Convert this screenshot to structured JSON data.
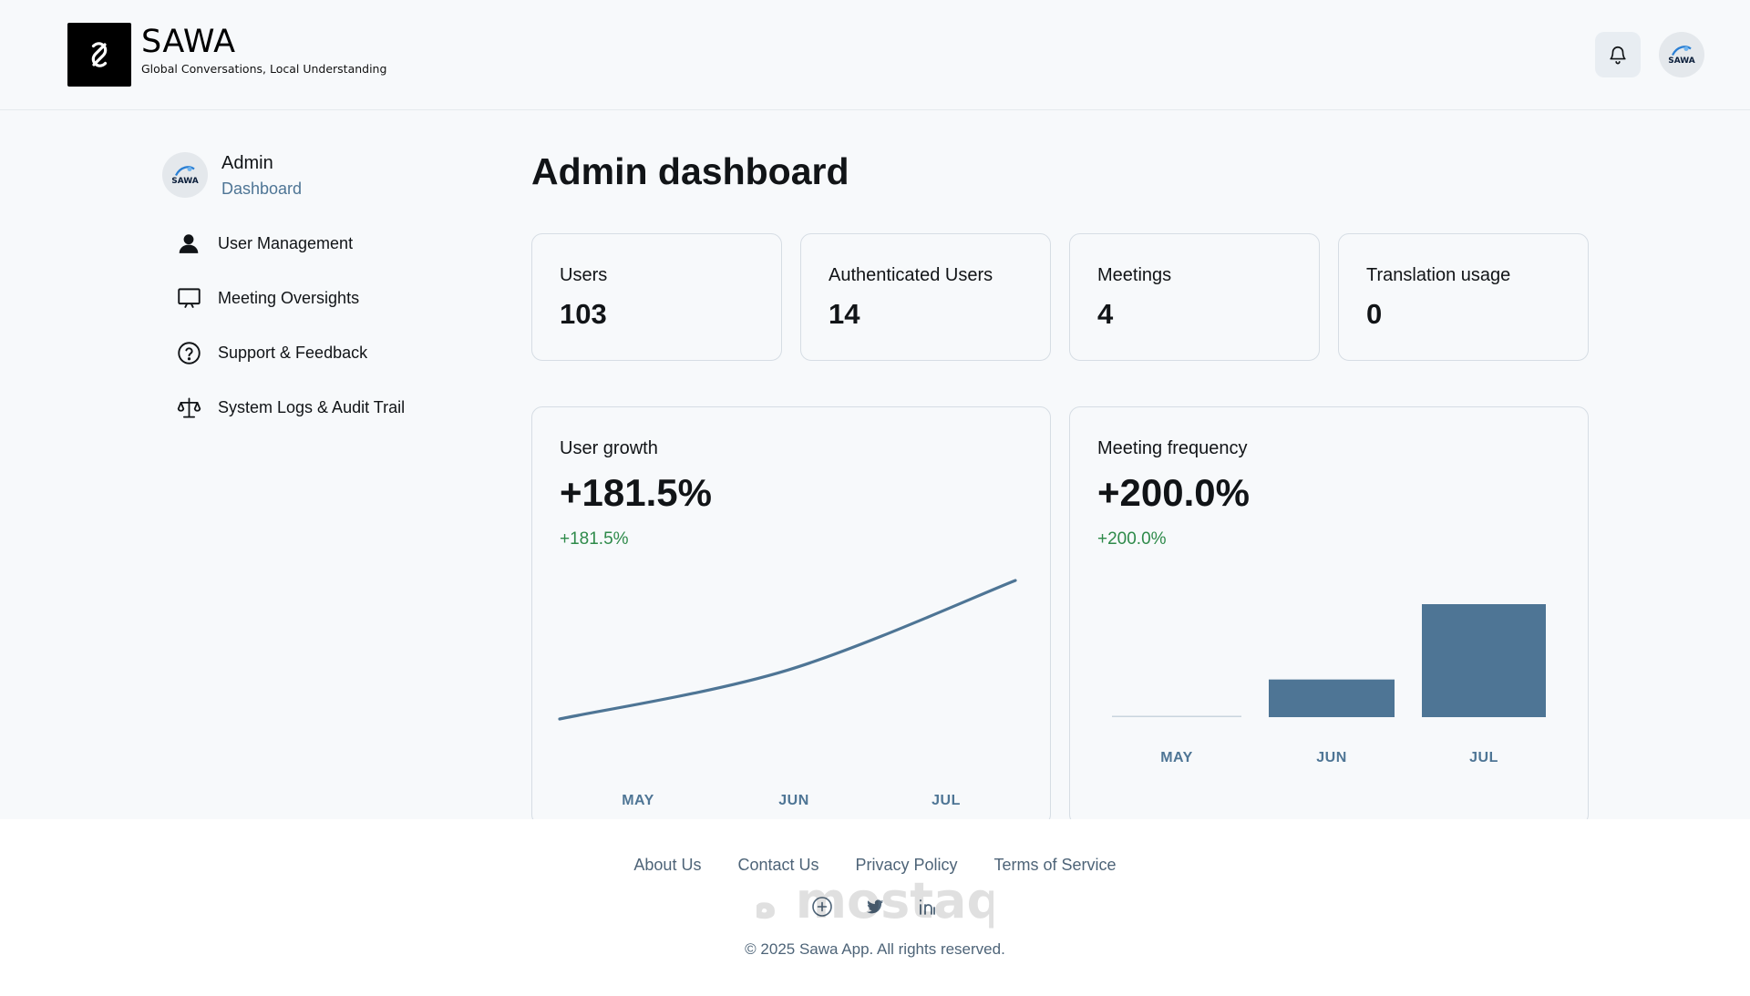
{
  "header": {
    "brand_name": "SAWA",
    "brand_tagline": "Global Conversations, Local Understanding",
    "avatar_text": "SAWA"
  },
  "sidebar": {
    "avatar_text": "SAWA",
    "title": "Admin",
    "subtitle": "Dashboard",
    "items": [
      {
        "label": "User Management",
        "icon": "user-icon"
      },
      {
        "label": "Meeting Oversights",
        "icon": "presentation-icon"
      },
      {
        "label": "Support & Feedback",
        "icon": "help-circle-icon"
      },
      {
        "label": "System Logs & Audit Trail",
        "icon": "scale-icon"
      }
    ]
  },
  "main": {
    "title": "Admin dashboard",
    "stats": [
      {
        "label": "Users",
        "value": "103"
      },
      {
        "label": "Authenticated Users",
        "value": "14"
      },
      {
        "label": "Meetings",
        "value": "4"
      },
      {
        "label": "Translation usage",
        "value": "0"
      }
    ],
    "charts": [
      {
        "title": "User growth",
        "big_value": "+181.5%",
        "delta": "+181.5%"
      },
      {
        "title": "Meeting frequency",
        "big_value": "+200.0%",
        "delta": "+200.0%"
      }
    ]
  },
  "chart_data": [
    {
      "type": "line",
      "title": "User growth",
      "categories": [
        "MAY",
        "JUN",
        "JUL"
      ],
      "series": [
        {
          "values": [
            36.6,
            60,
            103
          ]
        }
      ],
      "grid": false,
      "color": "#4e7595"
    },
    {
      "type": "bar",
      "title": "Meeting frequency",
      "categories": [
        "MAY",
        "JUN",
        "JUL"
      ],
      "series": [
        {
          "values": [
            0,
            1,
            3
          ]
        }
      ],
      "grid": false,
      "color": "#4e7595"
    }
  ],
  "footer": {
    "links": [
      "About Us",
      "Contact Us",
      "Privacy Policy",
      "Terms of Service"
    ],
    "social": [
      "add-circle-icon",
      "twitter-icon",
      "linkedin-icon"
    ],
    "copyright": "© 2025 Sawa App. All rights reserved.",
    "watermark": "مستقل mostaql.com"
  },
  "colors": {
    "accent": "#4e7595",
    "positive": "#2e8a4a",
    "text": "#111417",
    "border": "#d6dde4"
  }
}
